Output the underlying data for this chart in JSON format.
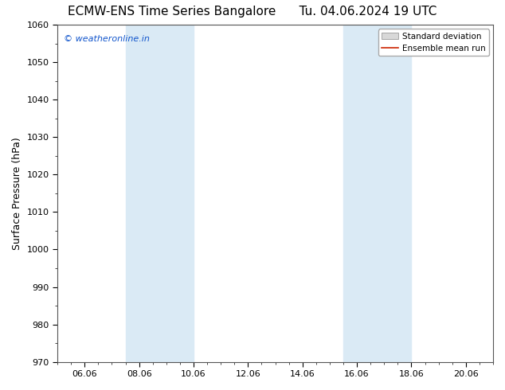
{
  "title_left": "ECMW-ENS Time Series Bangalore",
  "title_right": "Tu. 04.06.2024 19 UTC",
  "ylabel": "Surface Pressure (hPa)",
  "ylim": [
    970,
    1060
  ],
  "yticks": [
    970,
    980,
    990,
    1000,
    1010,
    1020,
    1030,
    1040,
    1050,
    1060
  ],
  "x_min": 0,
  "x_max": 16,
  "xtick_labels": [
    "06.06",
    "08.06",
    "10.06",
    "12.06",
    "14.06",
    "16.06",
    "18.06",
    "20.06"
  ],
  "xtick_positions": [
    1,
    3,
    5,
    7,
    9,
    11,
    13,
    15
  ],
  "shaded_bands": [
    {
      "x_start": 2.5,
      "x_end": 5.0
    },
    {
      "x_start": 10.5,
      "x_end": 13.0
    }
  ],
  "shaded_color": "#daeaf5",
  "watermark_text": "© weatheronline.in",
  "watermark_color": "#1155cc",
  "legend_std_label": "Standard deviation",
  "legend_mean_label": "Ensemble mean run",
  "legend_std_facecolor": "#d8d8d8",
  "legend_std_edgecolor": "#888888",
  "legend_mean_color": "#cc2200",
  "bg_color": "#ffffff",
  "spine_color": "#555555",
  "title_fontsize": 11,
  "ylabel_fontsize": 9,
  "tick_fontsize": 8,
  "watermark_fontsize": 8,
  "legend_fontsize": 7.5
}
